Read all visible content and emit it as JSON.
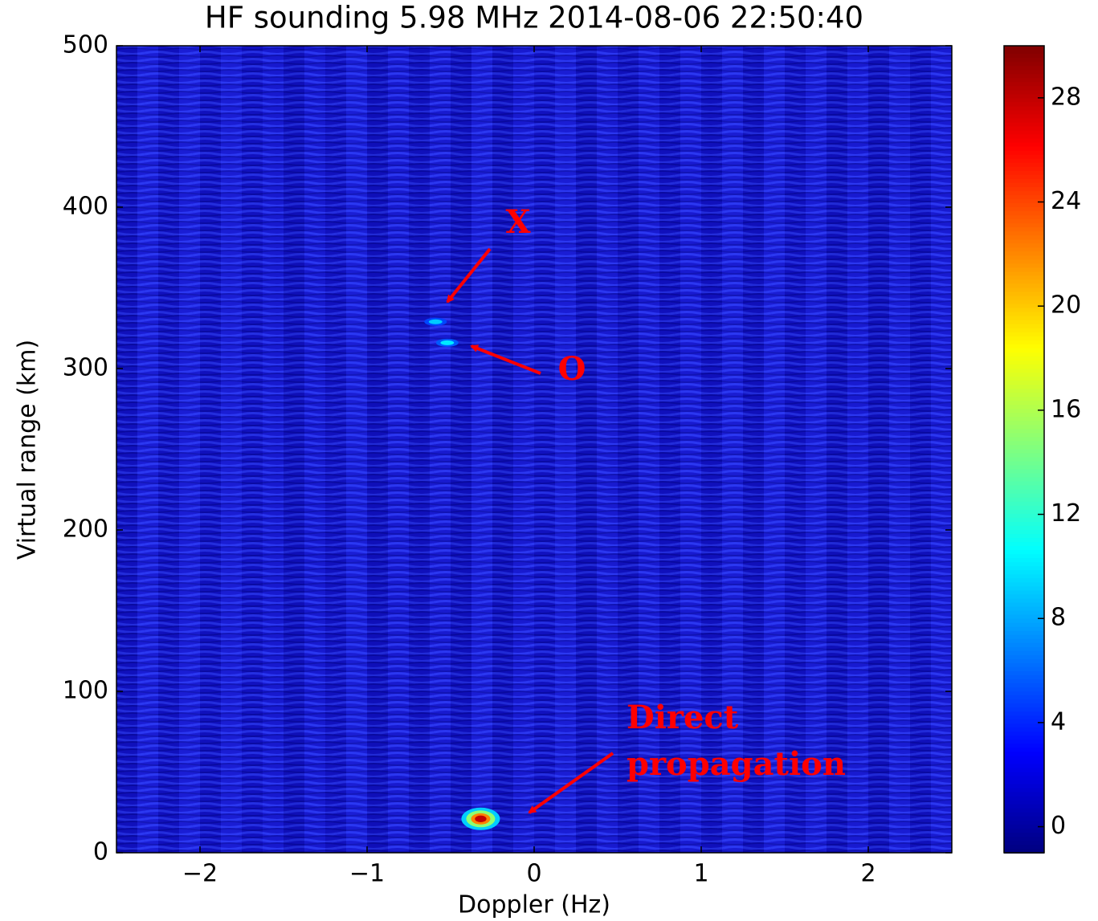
{
  "chart_data": {
    "type": "heatmap",
    "title": "HF sounding 5.98 MHz 2014-08-06 22:50:40",
    "x_label": "Doppler (Hz)",
    "y_label": "Virtual range (km)",
    "xlim": [
      -2.5,
      2.5
    ],
    "xticks": [
      {
        "value": -2,
        "label": "−2"
      },
      {
        "value": -1,
        "label": "−1"
      },
      0,
      1,
      2
    ],
    "ylim": [
      0,
      500
    ],
    "yticks": [
      0,
      100,
      200,
      300,
      400,
      500
    ],
    "colormap": "jet",
    "clim": [
      -1,
      30
    ],
    "cticks": [
      0,
      4,
      8,
      12,
      16,
      20,
      24,
      28
    ],
    "x": [
      -0.59,
      -0.52,
      -0.32
    ],
    "y": [
      329,
      316,
      21
    ],
    "values": [
      9,
      10,
      28
    ],
    "annotations": [
      {
        "text": "X"
      },
      {
        "text": "O"
      },
      {
        "lines": [
          "Direct",
          "propagation"
        ]
      }
    ],
    "annotation_color": "#ff0000"
  }
}
